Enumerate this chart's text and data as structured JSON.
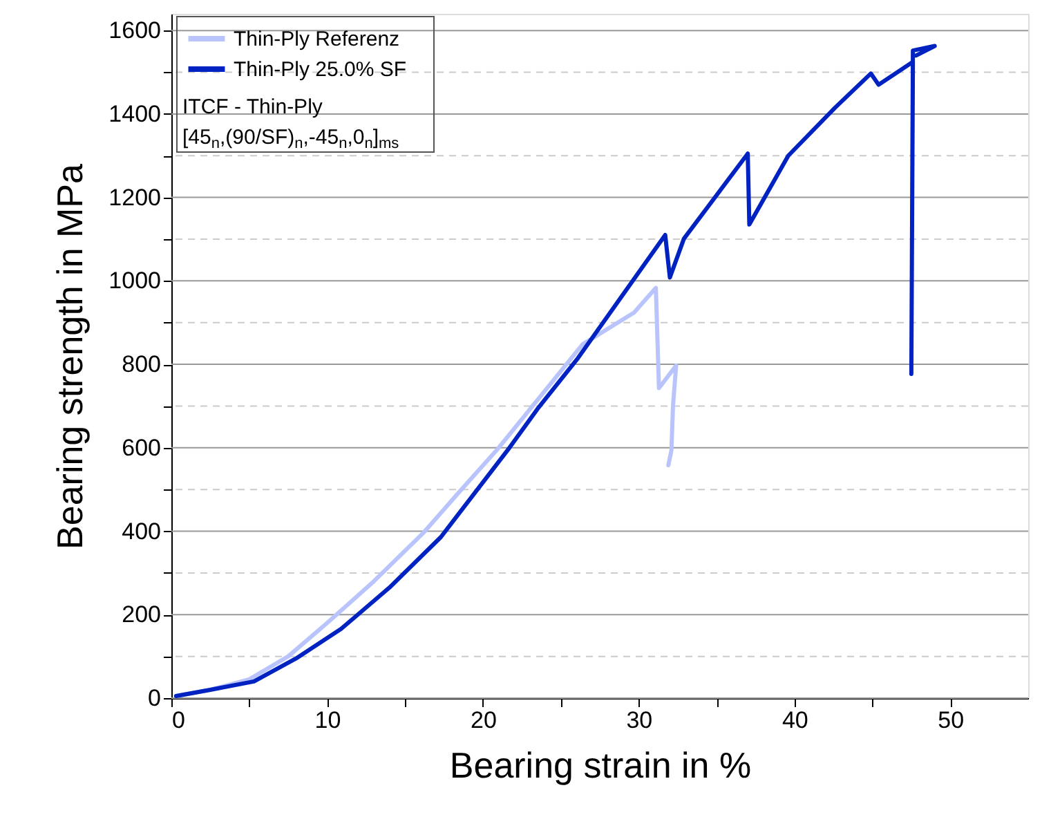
{
  "chart_data": {
    "type": "line",
    "xlabel": "Bearing strain in %",
    "ylabel": "Bearing strength in MPa",
    "xlim": [
      0,
      55
    ],
    "ylim": [
      0,
      1640
    ],
    "xticks": [
      0,
      {
        "value": 5,
        "label": null
      },
      10,
      {
        "value": 15,
        "label": null
      },
      20,
      {
        "value": 25,
        "label": null
      },
      30,
      {
        "value": 35,
        "label": null
      },
      40,
      {
        "value": 45,
        "label": null
      },
      50
    ],
    "yticks": [
      0,
      {
        "value": 100,
        "label": null
      },
      200,
      {
        "value": 300,
        "label": null
      },
      400,
      {
        "value": 500,
        "label": null
      },
      600,
      {
        "value": 700,
        "label": null
      },
      800,
      {
        "value": 900,
        "label": null
      },
      1000,
      {
        "value": 1100,
        "label": null
      },
      1200,
      {
        "value": 1300,
        "label": null
      },
      1400,
      {
        "value": 1500,
        "label": null
      },
      1600
    ],
    "grid": "y",
    "legend": "top left",
    "line_style": "solid",
    "marker": "none",
    "annotations": [
      "ITCF - Thin-Ply",
      "[45$_{n}$,(90/SF)$_{n}$,-45$_{n}$,0$_{n}$]$_{ms}$"
    ],
    "series": [
      {
        "name": "Thin-Ply Referenz",
        "color": "#b8c4fb",
        "x": [
          0.3,
          2.5,
          5,
          7.5,
          10,
          13,
          16.2,
          18.5,
          20.9,
          23.9,
          26.4,
          29.7,
          31.1,
          31.3,
          32.4,
          32.2,
          32.1,
          31.9
        ],
        "values": [
          5,
          20,
          45,
          100,
          180,
          280,
          397,
          495,
          595,
          733,
          848,
          924,
          983,
          743,
          797,
          700,
          594,
          558
        ]
      },
      {
        "name": "Thin-Ply 25.0% SF",
        "color": "#0022c0",
        "x": [
          0.3,
          2.5,
          5.3,
          8,
          10.9,
          14,
          17.3,
          21.7,
          23.5,
          26.1,
          31.7,
          32.0,
          32.9,
          37.0,
          37.1,
          39.6,
          42.6,
          44.9,
          45.4,
          47.6,
          47.5,
          47.6,
          49.0,
          47.8
        ],
        "values": [
          5,
          20,
          40,
          95,
          166,
          265,
          386,
          600,
          693,
          815,
          1110,
          1008,
          1101,
          1305,
          1135,
          1300,
          1415,
          1497,
          1470,
          1525,
          777,
          1552,
          1563,
          1540
        ]
      }
    ]
  }
}
